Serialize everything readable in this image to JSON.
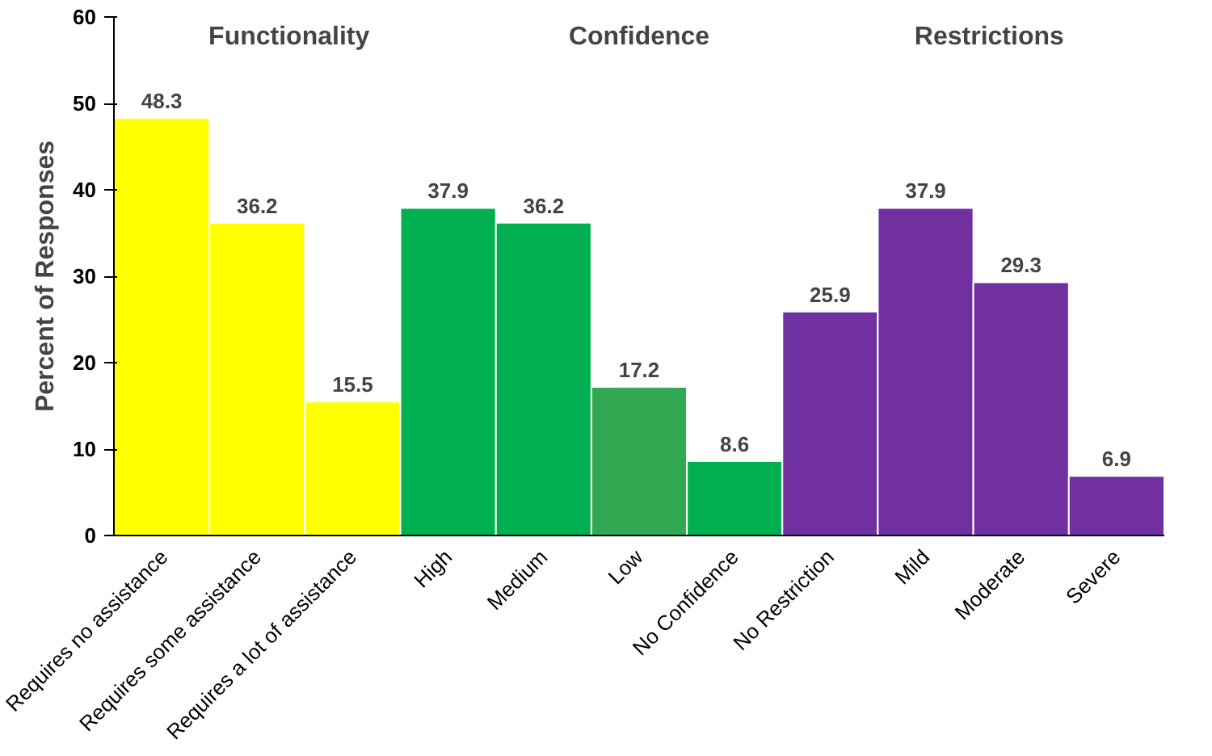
{
  "chart_data": {
    "type": "bar",
    "ylabel": "Percent of Responses",
    "categories": [
      "Requires no assistance",
      "Requires some assistance",
      "Requires a lot of assistance",
      "High",
      "Medium",
      "Low",
      "No Confidence",
      "No Restriction",
      "Mild",
      "Moderate",
      "Severe"
    ],
    "values": [
      48.3,
      36.2,
      15.5,
      37.9,
      36.2,
      17.2,
      8.6,
      25.9,
      37.9,
      29.3,
      6.9
    ],
    "colors": [
      "#ffff00",
      "#ffff00",
      "#ffff00",
      "#00b050",
      "#00b050",
      "#33a853",
      "#00b050",
      "#7030a0",
      "#7030a0",
      "#7030a0",
      "#7030a0"
    ],
    "ylim": [
      0,
      60
    ],
    "yticks": [
      0,
      10,
      20,
      30,
      40,
      50,
      60
    ],
    "grid": false,
    "data_labels": true,
    "annotations": [
      "Functionality",
      "Confidence",
      "Restrictions"
    ]
  }
}
